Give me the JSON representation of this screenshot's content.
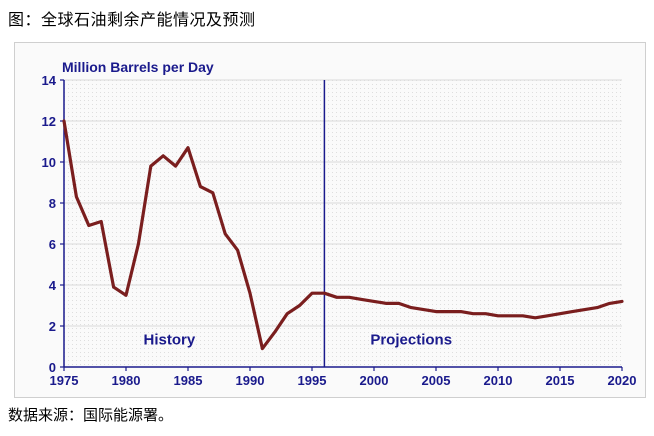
{
  "caption": "图：全球石油剩余产能情况及预测",
  "source": "数据来源：国际能源署。",
  "chart_data": {
    "type": "line",
    "ylabel": "Million Barrels per Day",
    "xlim": [
      1975,
      2020
    ],
    "ylim": [
      0,
      14
    ],
    "x_ticks": [
      1975,
      1980,
      1985,
      1990,
      1995,
      2000,
      2005,
      2010,
      2015,
      2020
    ],
    "y_ticks": [
      0,
      2,
      4,
      6,
      8,
      10,
      12,
      14
    ],
    "grid": true,
    "divider_x": 1996,
    "annotations": [
      {
        "text": "History",
        "x": 1983.5,
        "y": 1.1
      },
      {
        "text": "Projections",
        "x": 2003,
        "y": 1.1
      }
    ],
    "series": [
      {
        "color": "#7a1e1e",
        "points": [
          [
            1975,
            12.0
          ],
          [
            1976,
            8.3
          ],
          [
            1977,
            6.9
          ],
          [
            1978,
            7.1
          ],
          [
            1979,
            3.9
          ],
          [
            1980,
            3.5
          ],
          [
            1981,
            6.0
          ],
          [
            1982,
            9.8
          ],
          [
            1983,
            10.3
          ],
          [
            1984,
            9.8
          ],
          [
            1985,
            10.7
          ],
          [
            1986,
            8.8
          ],
          [
            1987,
            8.5
          ],
          [
            1988,
            6.5
          ],
          [
            1989,
            5.7
          ],
          [
            1990,
            3.6
          ],
          [
            1991,
            0.9
          ],
          [
            1992,
            1.7
          ],
          [
            1993,
            2.6
          ],
          [
            1994,
            3.0
          ],
          [
            1995,
            3.6
          ],
          [
            1996,
            3.6
          ],
          [
            1997,
            3.4
          ],
          [
            1998,
            3.4
          ],
          [
            1999,
            3.3
          ],
          [
            2000,
            3.2
          ],
          [
            2001,
            3.1
          ],
          [
            2002,
            3.1
          ],
          [
            2003,
            2.9
          ],
          [
            2004,
            2.8
          ],
          [
            2005,
            2.7
          ],
          [
            2006,
            2.7
          ],
          [
            2007,
            2.7
          ],
          [
            2008,
            2.6
          ],
          [
            2009,
            2.6
          ],
          [
            2010,
            2.5
          ],
          [
            2011,
            2.5
          ],
          [
            2012,
            2.5
          ],
          [
            2013,
            2.4
          ],
          [
            2014,
            2.5
          ],
          [
            2015,
            2.6
          ],
          [
            2016,
            2.7
          ],
          [
            2017,
            2.8
          ],
          [
            2018,
            2.9
          ],
          [
            2019,
            3.1
          ],
          [
            2020,
            3.2
          ]
        ]
      }
    ]
  }
}
